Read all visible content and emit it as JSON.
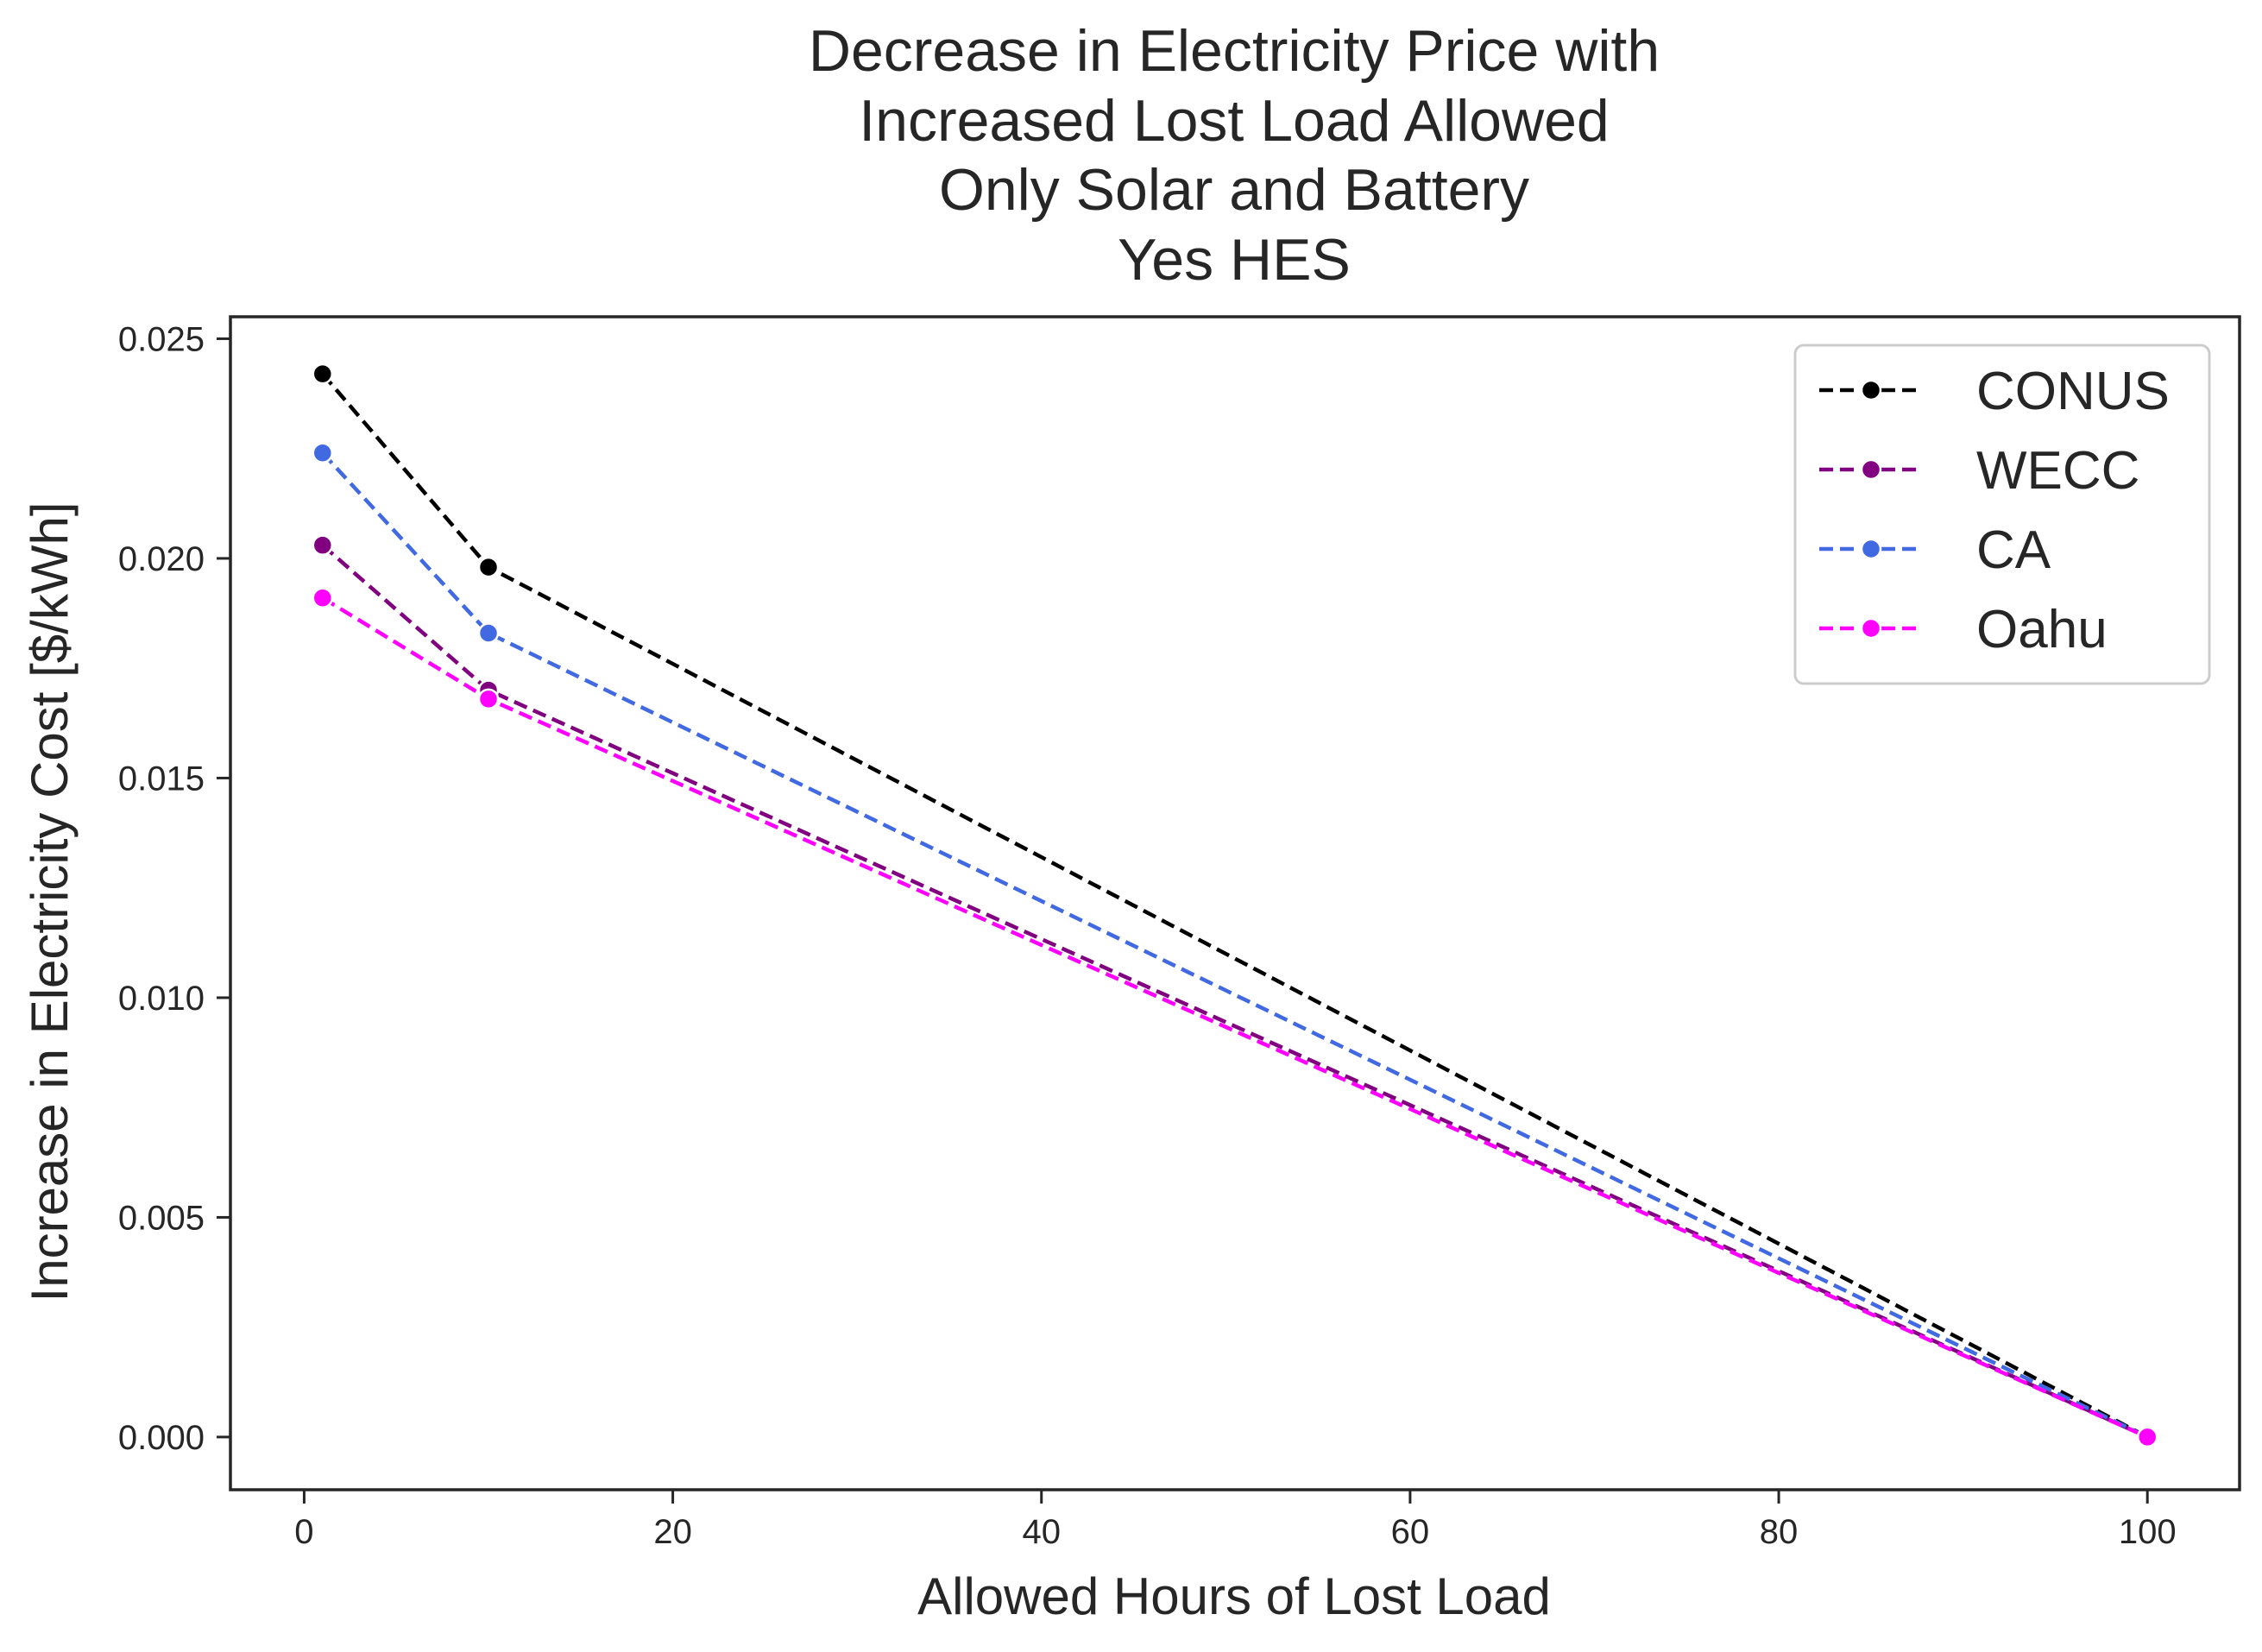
{
  "chart_data": {
    "type": "line",
    "title": [
      "Decrease in Electricity Price with",
      "Increased Lost Load Allowed",
      "Only Solar and Battery",
      "Yes HES"
    ],
    "xlabel": "Allowed Hours of Lost Load",
    "ylabel": "Increase in Electricity Cost [$/kWh]",
    "xlim": [
      -4,
      105
    ],
    "ylim": [
      -0.0012,
      0.0255
    ],
    "xticks": [
      0,
      20,
      40,
      60,
      80,
      100
    ],
    "xtick_labels": [
      "0",
      "20",
      "40",
      "60",
      "80",
      "100"
    ],
    "yticks": [
      0,
      0.005,
      0.01,
      0.015,
      0.02,
      0.025
    ],
    "ytick_labels": [
      "0.000",
      "0.005",
      "0.010",
      "0.015",
      "0.020",
      "0.025"
    ],
    "grid": false,
    "legend_position": "top-right",
    "x": [
      1,
      10,
      100
    ],
    "series": [
      {
        "name": "CONUS",
        "color": "#000000",
        "values": [
          0.0242,
          0.0198,
          0.0
        ]
      },
      {
        "name": "WECC",
        "color": "#800080",
        "values": [
          0.0203,
          0.017,
          0.0
        ]
      },
      {
        "name": "CA",
        "color": "#4169e1",
        "values": [
          0.0224,
          0.0183,
          0.0
        ]
      },
      {
        "name": "Oahu",
        "color": "#ff00ff",
        "values": [
          0.0191,
          0.0168,
          0.0
        ]
      }
    ]
  }
}
